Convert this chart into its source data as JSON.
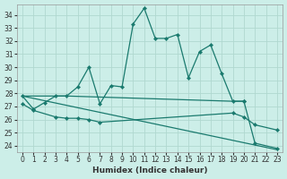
{
  "xlabel": "Humidex (Indice chaleur)",
  "bg_color": "#cceee8",
  "line_color": "#1a7a6e",
  "grid_color": "#b0d8d0",
  "ylim": [
    23.5,
    34.8
  ],
  "xlim": [
    -0.5,
    23.5
  ],
  "yticks": [
    24,
    25,
    26,
    27,
    28,
    29,
    30,
    31,
    32,
    33,
    34
  ],
  "xticks": [
    0,
    1,
    2,
    3,
    4,
    5,
    6,
    7,
    8,
    9,
    10,
    11,
    12,
    13,
    14,
    15,
    16,
    17,
    18,
    19,
    20,
    21,
    22,
    23
  ],
  "line1_x": [
    0,
    1,
    2,
    3,
    4,
    5,
    6,
    7,
    8,
    9,
    10,
    11,
    12,
    13,
    14,
    15,
    16,
    17,
    18,
    19,
    20
  ],
  "line1_y": [
    27.8,
    26.8,
    27.3,
    27.8,
    27.8,
    28.5,
    30.0,
    27.2,
    28.6,
    28.5,
    33.3,
    34.5,
    32.2,
    32.2,
    32.5,
    29.2,
    31.2,
    31.7,
    29.5,
    27.4,
    27.4
  ],
  "line2_x": [
    0,
    3,
    4,
    19,
    20
  ],
  "line2_y": [
    27.8,
    27.8,
    27.8,
    27.4,
    27.4
  ],
  "line3_x": [
    0,
    1,
    3,
    4,
    5,
    6,
    7,
    19,
    20,
    21,
    23
  ],
  "line3_y": [
    27.2,
    26.7,
    26.2,
    26.1,
    26.1,
    26.0,
    25.8,
    26.5,
    26.2,
    25.6,
    25.2
  ],
  "line4_x": [
    0,
    23
  ],
  "line4_y": [
    27.8,
    23.7
  ],
  "line5_x": [
    20,
    21,
    23
  ],
  "line5_y": [
    27.4,
    24.2,
    23.8
  ]
}
